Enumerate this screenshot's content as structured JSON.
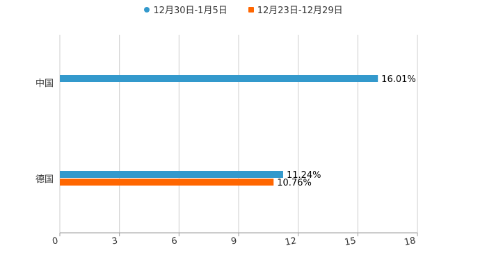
{
  "chart_data": {
    "type": "bar",
    "orientation": "horizontal",
    "categories": [
      "中国",
      "德国"
    ],
    "series": [
      {
        "name": "12月30日-1月5日",
        "color": "#3399cc",
        "values": [
          16.01,
          11.24
        ],
        "labels": [
          "16.01%",
          "11.24%"
        ]
      },
      {
        "name": "12月23日-12月29日",
        "color": "#ff6600",
        "values": [
          null,
          10.76
        ],
        "labels": [
          null,
          "10.76%"
        ]
      }
    ],
    "xlim": [
      0,
      18
    ],
    "xticks": [
      "0",
      "3",
      "6",
      "9",
      "12",
      "15",
      "18"
    ],
    "grid": true,
    "legend": "top-center"
  }
}
